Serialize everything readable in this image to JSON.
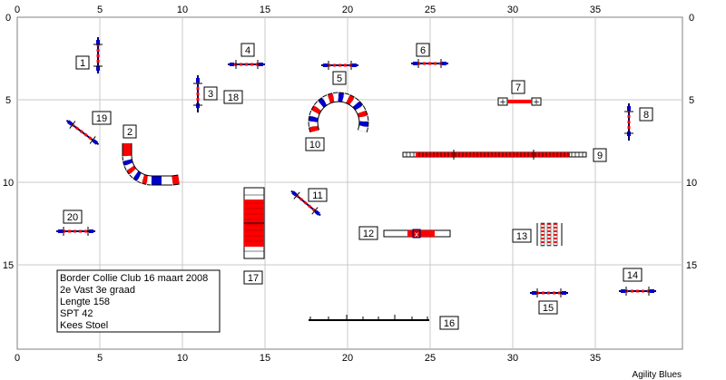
{
  "axes": {
    "top_ticks": [
      "0",
      "5",
      "10",
      "15",
      "20",
      "25",
      "30",
      "35"
    ],
    "bottom_ticks": [
      "0",
      "5",
      "10",
      "15",
      "20",
      "25",
      "30",
      "35"
    ],
    "left_ticks": [
      "0",
      "5",
      "10",
      "15"
    ],
    "right_ticks": [
      "0",
      "5",
      "10",
      "15"
    ]
  },
  "obstacle_numbers": [
    "1",
    "2",
    "3",
    "4",
    "5",
    "6",
    "7",
    "8",
    "9",
    "10",
    "11",
    "12",
    "13",
    "14",
    "15",
    "16",
    "17",
    "18",
    "19",
    "20"
  ],
  "info": {
    "line1": "Border Collie Club 16 maart 2008",
    "line2": "2e Vast 3e graad",
    "line3": "Lengte 158",
    "line4": "SPT 42",
    "line5": "Kees Stoel"
  },
  "credit": "Agility Blues",
  "colors": {
    "grid": "#c8c8c8",
    "frame": "#808080",
    "red": "#ff0000",
    "blue": "#0000cc",
    "navy": "#000066"
  }
}
